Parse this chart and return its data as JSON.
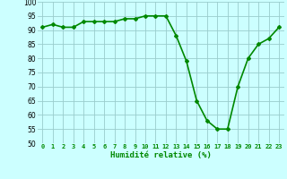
{
  "x": [
    0,
    1,
    2,
    3,
    4,
    5,
    6,
    7,
    8,
    9,
    10,
    11,
    12,
    13,
    14,
    15,
    16,
    17,
    18,
    19,
    20,
    21,
    22,
    23
  ],
  "y": [
    91,
    92,
    91,
    91,
    93,
    93,
    93,
    93,
    94,
    94,
    95,
    95,
    95,
    88,
    79,
    65,
    58,
    55,
    55,
    70,
    80,
    85,
    87,
    91
  ],
  "line_color": "#008800",
  "marker": "D",
  "marker_size": 2,
  "bg_color": "#ccffff",
  "grid_color": "#99cccc",
  "xlabel": "Humidité relative (%)",
  "xlabel_color": "#008800",
  "ylim": [
    50,
    100
  ],
  "yticks": [
    50,
    55,
    60,
    65,
    70,
    75,
    80,
    85,
    90,
    95,
    100
  ],
  "xtick_labels": [
    "0",
    "1",
    "2",
    "3",
    "4",
    "5",
    "6",
    "7",
    "8",
    "9",
    "10",
    "11",
    "12",
    "13",
    "14",
    "15",
    "16",
    "17",
    "18",
    "19",
    "20",
    "21",
    "22",
    "23"
  ],
  "tick_color": "#000000",
  "line_width": 1.2,
  "tick_fontsize": 5,
  "xlabel_fontsize": 6.5,
  "ytick_fontsize": 5.5
}
